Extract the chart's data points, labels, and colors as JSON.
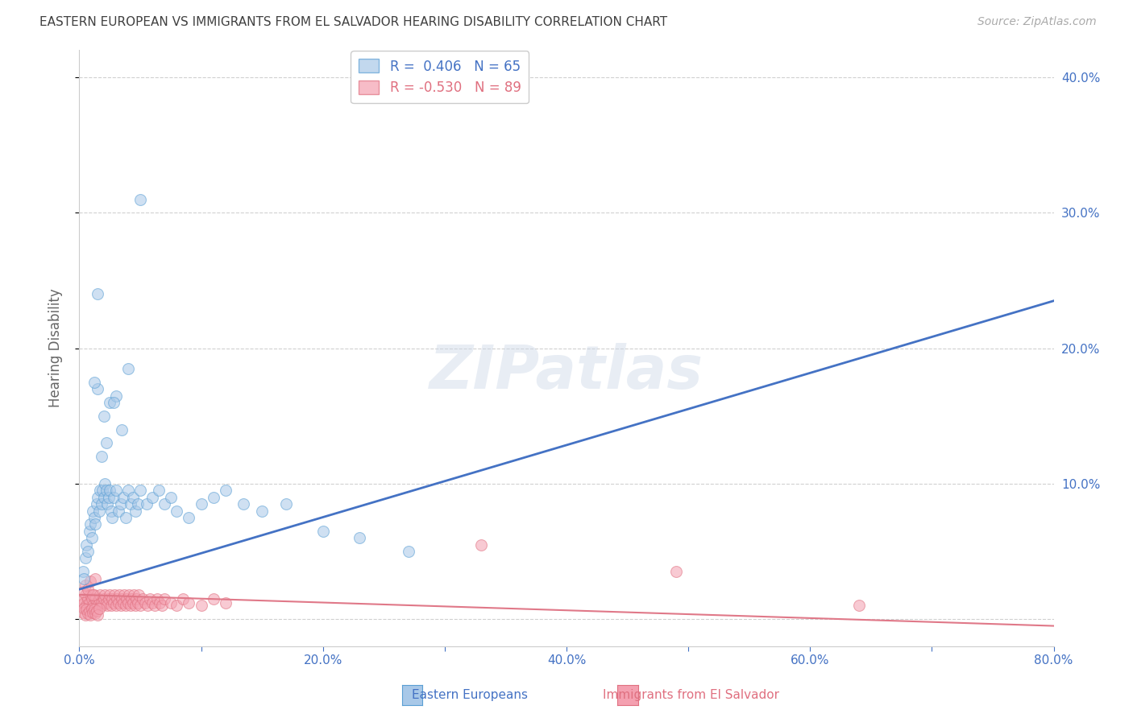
{
  "title": "EASTERN EUROPEAN VS IMMIGRANTS FROM EL SALVADOR HEARING DISABILITY CORRELATION CHART",
  "source": "Source: ZipAtlas.com",
  "ylabel": "Hearing Disability",
  "xlim": [
    0.0,
    0.8
  ],
  "ylim": [
    -0.02,
    0.42
  ],
  "blue_color": "#a8c8e8",
  "blue_edge_color": "#5a9fd4",
  "pink_color": "#f4a0b0",
  "pink_edge_color": "#e07080",
  "blue_line_color": "#4472c4",
  "pink_line_color": "#e07888",
  "axis_color": "#4472c4",
  "grid_color": "#d0d0d0",
  "title_color": "#404040",
  "background_color": "#ffffff",
  "watermark": "ZIPatlas",
  "legend1_label": "R =  0.406   N = 65",
  "legend2_label": "R = -0.530   N = 89",
  "legend_label1": "Eastern Europeans",
  "legend_label2": "Immigrants from El Salvador",
  "blue_line_x0": 0.0,
  "blue_line_y0": 0.022,
  "blue_line_x1": 0.8,
  "blue_line_y1": 0.235,
  "pink_line_x0": 0.0,
  "pink_line_y0": 0.018,
  "pink_line_x1": 0.8,
  "pink_line_y1": -0.005,
  "blue_scatter_x": [
    0.003,
    0.004,
    0.005,
    0.006,
    0.007,
    0.008,
    0.009,
    0.01,
    0.011,
    0.012,
    0.013,
    0.014,
    0.015,
    0.016,
    0.017,
    0.018,
    0.019,
    0.02,
    0.021,
    0.022,
    0.023,
    0.024,
    0.025,
    0.026,
    0.027,
    0.028,
    0.03,
    0.032,
    0.034,
    0.036,
    0.038,
    0.04,
    0.042,
    0.044,
    0.046,
    0.048,
    0.05,
    0.055,
    0.06,
    0.065,
    0.07,
    0.075,
    0.08,
    0.09,
    0.1,
    0.11,
    0.12,
    0.135,
    0.15,
    0.17,
    0.2,
    0.23,
    0.27,
    0.02,
    0.025,
    0.03,
    0.018,
    0.022,
    0.035,
    0.015,
    0.012,
    0.028,
    0.04,
    0.015,
    0.05
  ],
  "blue_scatter_y": [
    0.035,
    0.03,
    0.045,
    0.055,
    0.05,
    0.065,
    0.07,
    0.06,
    0.08,
    0.075,
    0.07,
    0.085,
    0.09,
    0.08,
    0.095,
    0.085,
    0.095,
    0.09,
    0.1,
    0.095,
    0.085,
    0.09,
    0.095,
    0.08,
    0.075,
    0.09,
    0.095,
    0.08,
    0.085,
    0.09,
    0.075,
    0.095,
    0.085,
    0.09,
    0.08,
    0.085,
    0.095,
    0.085,
    0.09,
    0.095,
    0.085,
    0.09,
    0.08,
    0.075,
    0.085,
    0.09,
    0.095,
    0.085,
    0.08,
    0.085,
    0.065,
    0.06,
    0.05,
    0.15,
    0.16,
    0.165,
    0.12,
    0.13,
    0.14,
    0.17,
    0.175,
    0.16,
    0.185,
    0.24,
    0.31
  ],
  "pink_scatter_x": [
    0.002,
    0.003,
    0.004,
    0.005,
    0.006,
    0.007,
    0.008,
    0.009,
    0.01,
    0.011,
    0.012,
    0.013,
    0.014,
    0.015,
    0.016,
    0.017,
    0.018,
    0.019,
    0.02,
    0.021,
    0.022,
    0.023,
    0.024,
    0.025,
    0.026,
    0.027,
    0.028,
    0.029,
    0.03,
    0.031,
    0.032,
    0.033,
    0.034,
    0.035,
    0.036,
    0.037,
    0.038,
    0.039,
    0.04,
    0.041,
    0.042,
    0.043,
    0.044,
    0.045,
    0.046,
    0.047,
    0.048,
    0.049,
    0.05,
    0.052,
    0.054,
    0.056,
    0.058,
    0.06,
    0.062,
    0.064,
    0.066,
    0.068,
    0.07,
    0.075,
    0.08,
    0.085,
    0.09,
    0.1,
    0.11,
    0.12,
    0.003,
    0.004,
    0.005,
    0.006,
    0.007,
    0.008,
    0.009,
    0.01,
    0.011,
    0.012,
    0.013,
    0.014,
    0.015,
    0.016,
    0.33,
    0.49,
    0.64,
    0.003,
    0.005,
    0.007,
    0.009,
    0.011,
    0.013
  ],
  "pink_scatter_y": [
    0.01,
    0.015,
    0.012,
    0.018,
    0.01,
    0.015,
    0.012,
    0.018,
    0.015,
    0.01,
    0.018,
    0.015,
    0.012,
    0.01,
    0.015,
    0.018,
    0.012,
    0.01,
    0.015,
    0.018,
    0.012,
    0.01,
    0.015,
    0.018,
    0.01,
    0.015,
    0.012,
    0.018,
    0.01,
    0.015,
    0.012,
    0.018,
    0.01,
    0.015,
    0.012,
    0.018,
    0.01,
    0.015,
    0.012,
    0.018,
    0.01,
    0.015,
    0.012,
    0.018,
    0.01,
    0.015,
    0.012,
    0.018,
    0.01,
    0.015,
    0.012,
    0.01,
    0.015,
    0.012,
    0.01,
    0.015,
    0.012,
    0.01,
    0.015,
    0.012,
    0.01,
    0.015,
    0.012,
    0.01,
    0.015,
    0.012,
    0.005,
    0.008,
    0.003,
    0.007,
    0.004,
    0.006,
    0.003,
    0.008,
    0.005,
    0.007,
    0.004,
    0.006,
    0.003,
    0.008,
    0.055,
    0.035,
    0.01,
    0.02,
    0.025,
    0.022,
    0.028,
    0.018,
    0.03
  ]
}
